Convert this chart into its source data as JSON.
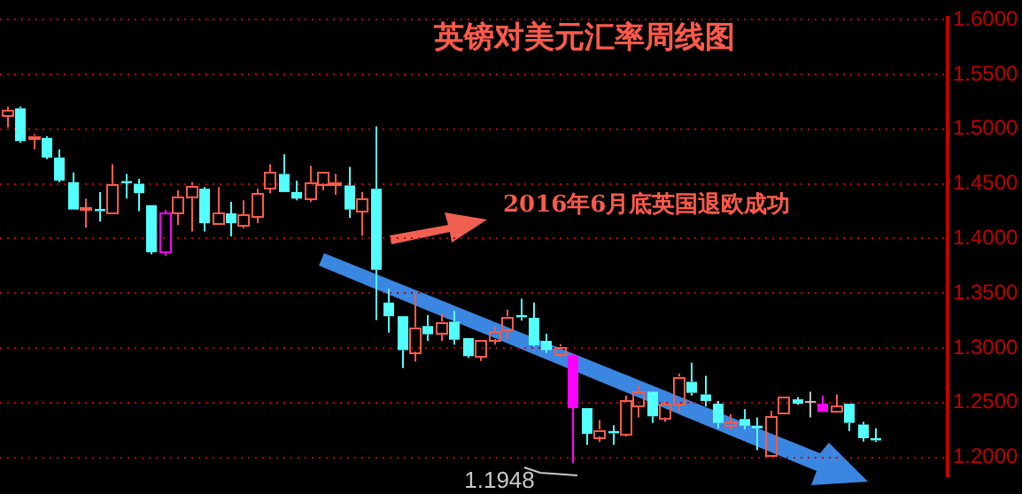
{
  "chart_data": {
    "type": "candlestick",
    "title": "英镑对美元汇率周线图",
    "annotations": [
      "2016年6月底英国退欧成功",
      "1.1948"
    ],
    "categories": [
      null,
      null,
      null,
      null,
      null,
      null,
      null,
      null,
      null,
      null,
      null,
      null,
      null,
      null,
      null,
      null,
      null,
      null,
      null,
      null,
      null,
      null,
      null,
      null,
      null,
      null,
      null,
      null,
      null,
      null,
      null,
      null,
      null,
      null,
      null,
      null,
      null,
      null,
      null,
      null,
      null,
      null,
      null,
      null,
      null,
      null,
      null,
      null,
      null,
      null,
      null,
      null,
      null,
      null,
      null,
      null,
      null,
      null,
      null,
      null,
      null,
      null,
      null,
      null,
      null,
      null,
      null,
      null,
      null,
      null,
      null,
      null
    ],
    "ohlc": [
      [
        1.5125,
        1.5205,
        1.5015,
        1.517
      ],
      [
        1.519,
        1.5205,
        1.4875,
        1.489
      ],
      [
        1.4915,
        1.4955,
        1.4815,
        1.494
      ],
      [
        1.492,
        1.4935,
        1.4725,
        1.474
      ],
      [
        1.474,
        1.4815,
        1.4515,
        1.453
      ],
      [
        1.4515,
        1.4605,
        1.4265,
        1.4265
      ],
      [
        1.427,
        1.4365,
        1.41,
        1.428
      ],
      [
        1.427,
        1.4425,
        1.4155,
        1.425
      ],
      [
        1.4235,
        1.468,
        1.4235,
        1.45
      ],
      [
        1.4525,
        1.459,
        1.4365,
        1.4505
      ],
      [
        1.45,
        1.4545,
        1.425,
        1.4415
      ],
      [
        1.4305,
        1.4305,
        1.3855,
        1.3875
      ],
      [
        1.3875,
        1.426,
        1.384,
        1.423
      ],
      [
        1.4235,
        1.444,
        1.4125,
        1.438
      ],
      [
        1.4385,
        1.4515,
        1.4065,
        1.4485
      ],
      [
        1.4455,
        1.447,
        1.4065,
        1.414
      ],
      [
        1.414,
        1.447,
        1.4125,
        1.423
      ],
      [
        1.423,
        1.4335,
        1.402,
        1.414
      ],
      [
        1.4125,
        1.435,
        1.4095,
        1.4215
      ],
      [
        1.4205,
        1.4455,
        1.414,
        1.441
      ],
      [
        1.446,
        1.468,
        1.4415,
        1.4605
      ],
      [
        1.459,
        1.477,
        1.4425,
        1.4425
      ],
      [
        1.4425,
        1.453,
        1.435,
        1.4365
      ],
      [
        1.4365,
        1.4665,
        1.4335,
        1.4515
      ],
      [
        1.4505,
        1.4615,
        1.444,
        1.4615
      ],
      [
        1.45,
        1.459,
        1.44,
        1.4515
      ],
      [
        1.4485,
        1.4655,
        1.419,
        1.4265
      ],
      [
        1.4255,
        1.4425,
        1.4025,
        1.4365
      ],
      [
        1.4455,
        1.5025,
        1.3255,
        1.3715
      ],
      [
        1.3415,
        1.354,
        1.314,
        1.329
      ],
      [
        1.329,
        1.329,
        1.2815,
        1.298
      ],
      [
        1.2965,
        1.35,
        1.2875,
        1.319
      ],
      [
        1.32,
        1.33,
        1.3065,
        1.3125
      ],
      [
        1.314,
        1.3315,
        1.3065,
        1.324
      ],
      [
        1.324,
        1.334,
        1.303,
        1.3075
      ],
      [
        1.309,
        1.309,
        1.291,
        1.2925
      ],
      [
        1.2925,
        1.3075,
        1.288,
        1.3075
      ],
      [
        1.308,
        1.3195,
        1.303,
        1.315
      ],
      [
        1.3165,
        1.335,
        1.308,
        1.329
      ],
      [
        1.33,
        1.345,
        1.325,
        1.328
      ],
      [
        1.3275,
        1.3415,
        1.3015,
        1.3025
      ],
      [
        1.3065,
        1.313,
        1.2955,
        1.298
      ],
      [
        1.294,
        1.3035,
        1.2915,
        1.3015
      ],
      [
        1.293,
        1.295,
        1.1948,
        1.245
      ],
      [
        1.245,
        1.245,
        1.2115,
        1.2215
      ],
      [
        1.219,
        1.234,
        1.214,
        1.2255
      ],
      [
        1.224,
        1.2295,
        1.2115,
        1.222
      ],
      [
        1.2215,
        1.2565,
        1.219,
        1.2515
      ],
      [
        1.2475,
        1.265,
        1.2365,
        1.26
      ],
      [
        1.26,
        1.26,
        1.2315,
        1.2375
      ],
      [
        1.2365,
        1.2515,
        1.2325,
        1.249
      ],
      [
        1.249,
        1.2765,
        1.2415,
        1.274
      ],
      [
        1.269,
        1.2865,
        1.2565,
        1.259
      ],
      [
        1.2575,
        1.2745,
        1.2465,
        1.2515
      ],
      [
        1.249,
        1.2515,
        1.2265,
        1.2315
      ],
      [
        1.229,
        1.2395,
        1.2255,
        1.2325
      ],
      [
        1.235,
        1.244,
        1.2255,
        1.229
      ],
      [
        1.229,
        1.2365,
        1.2065,
        1.2265
      ],
      [
        1.2015,
        1.2425,
        1.2005,
        1.2375
      ],
      [
        1.2405,
        1.255,
        1.2395,
        1.255
      ],
      [
        1.253,
        1.255,
        1.248,
        1.249
      ],
      [
        1.2515,
        1.26,
        1.2365,
        1.25
      ],
      [
        1.249,
        1.2565,
        1.2415,
        1.2415
      ],
      [
        1.2425,
        1.2575,
        1.2425,
        1.2475
      ],
      [
        1.249,
        1.249,
        1.224,
        1.2315
      ],
      [
        1.23,
        1.2325,
        1.2145,
        1.2175
      ],
      [
        1.2175,
        1.2265,
        1.214,
        1.2155
      ],
      null,
      null,
      null,
      null,
      null
    ],
    "colors": [
      "#ff5a4a",
      "#54ffff",
      "#ff5a4a",
      "#54ffff",
      "#54ffff",
      "#54ffff",
      "#ff5a4a",
      "#54ffff",
      "#ff5a4a",
      "#54ffff",
      "#54ffff",
      "#54ffff",
      "#ff00ff",
      "#ff5a4a",
      "#ff5a4a",
      "#54ffff",
      "#ff5a4a",
      "#54ffff",
      "#ff5a4a",
      "#ff5a4a",
      "#ff5a4a",
      "#54ffff",
      "#54ffff",
      "#ff5a4a",
      "#ff5a4a",
      "#ff5a4a",
      "#54ffff",
      "#ff5a4a",
      "#54ffff",
      "#54ffff",
      "#54ffff",
      "#ff5a4a",
      "#54ffff",
      "#ff5a4a",
      "#54ffff",
      "#54ffff",
      "#ff5a4a",
      "#ff5a4a",
      "#ff5a4a",
      "#54ffff",
      "#54ffff",
      "#54ffff",
      "#ff5a4a",
      "#ff00ff",
      "#54ffff",
      "#ff5a4a",
      "#54ffff",
      "#ff5a4a",
      "#ff5a4a",
      "#54ffff",
      "#ff5a4a",
      "#ff5a4a",
      "#54ffff",
      "#54ffff",
      "#54ffff",
      "#ff5a4a",
      "#54ffff",
      "#54ffff",
      "#ff5a4a",
      "#ff5a4a",
      "#54ffff",
      "#c0c0c0",
      "#ff00ff",
      "#ff5a4a",
      "#54ffff",
      "#54ffff",
      "#54ffff",
      null,
      null,
      null,
      null,
      null
    ],
    "ylim": [
      1.183,
      1.6015
    ],
    "yticks": [
      {
        "value": 1.2,
        "label": "1.2000"
      },
      {
        "value": 1.25,
        "label": "1.2500"
      },
      {
        "value": 1.3,
        "label": "1.3000"
      },
      {
        "value": 1.35,
        "label": "1.3500"
      },
      {
        "value": 1.4,
        "label": "1.4000"
      },
      {
        "value": 1.45,
        "label": "1.4500"
      },
      {
        "value": 1.5,
        "label": "1.5000"
      },
      {
        "value": 1.55,
        "label": "1.5500"
      },
      {
        "value": 1.6,
        "label": "1.6000"
      }
    ],
    "grid": "y"
  }
}
